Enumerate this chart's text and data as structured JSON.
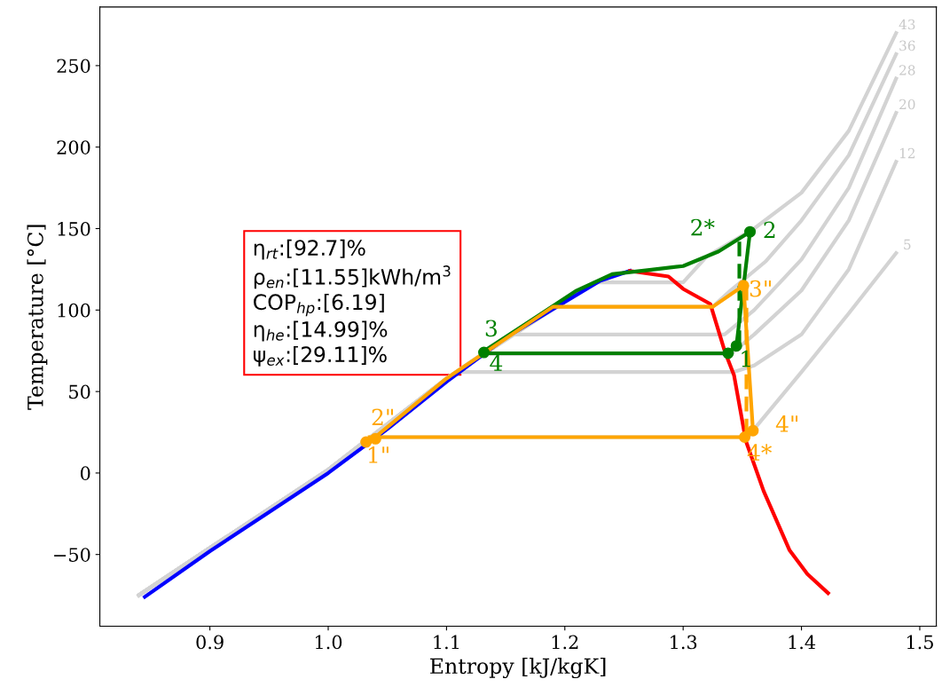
{
  "chart_data": {
    "type": "line",
    "xlabel": "Entropy [kJ/kgK]",
    "ylabel": "Temperature [°C]",
    "xlim": [
      0.807,
      1.514
    ],
    "ylim": [
      -94,
      286
    ],
    "xticks": [
      0.9,
      {
        "value": 1.0,
        "label": "1.0"
      },
      1.1,
      1.2,
      1.3,
      1.4,
      1.5
    ],
    "yticks": [
      {
        "value": -50,
        "label": "−50"
      },
      0,
      50,
      100,
      150,
      200,
      250
    ],
    "grid": false,
    "legend": false,
    "series": [
      {
        "color": "#d3d3d3",
        "x": [
          0.84,
          0.9,
          1.0,
          1.035,
          1.355,
          1.36,
          1.4,
          1.44,
          1.48
        ],
        "values": [
          -75,
          -46,
          2,
          22,
          22,
          27,
          62,
          98,
          135
        ]
      },
      {
        "color": "#d3d3d3",
        "x": [
          0.84,
          0.9,
          1.0,
          1.1,
          1.11,
          1.343,
          1.36,
          1.4,
          1.44,
          1.48
        ],
        "values": [
          -75,
          -46,
          2,
          58,
          62,
          62,
          66,
          85,
          125,
          191
        ]
      },
      {
        "color": "#d3d3d3",
        "x": [
          0.84,
          0.9,
          1.0,
          1.1,
          1.13,
          1.34,
          1.36,
          1.4,
          1.44,
          1.48
        ],
        "values": [
          -75,
          -46,
          2,
          58,
          73,
          73,
          85,
          112,
          155,
          221
        ]
      },
      {
        "color": "#d3d3d3",
        "x": [
          0.84,
          0.9,
          1.0,
          1.1,
          1.155,
          1.335,
          1.36,
          1.4,
          1.44,
          1.48
        ],
        "values": [
          -75,
          -46,
          2,
          58,
          85,
          85,
          100,
          131,
          175,
          242
        ]
      },
      {
        "color": "#d3d3d3",
        "x": [
          0.84,
          0.9,
          1.0,
          1.1,
          1.19,
          1.325,
          1.34,
          1.37,
          1.4,
          1.44,
          1.48
        ],
        "values": [
          -75,
          -46,
          2,
          58,
          102,
          102,
          112,
          130,
          155,
          195,
          257
        ]
      },
      {
        "color": "#d3d3d3",
        "x": [
          0.84,
          0.9,
          1.0,
          1.1,
          1.225,
          1.3,
          1.32,
          1.36,
          1.4,
          1.44,
          1.48
        ],
        "values": [
          -75,
          -46,
          2,
          58,
          117,
          117,
          133,
          150,
          172,
          210,
          270
        ]
      },
      {
        "color": "#0000ff",
        "x": [
          0.845,
          0.9,
          0.95,
          1.0,
          1.05,
          1.1,
          1.15,
          1.2,
          1.23,
          1.255
        ],
        "values": [
          -76,
          -48,
          -24,
          0,
          27,
          56,
          83,
          105,
          118,
          124
        ]
      },
      {
        "color": "#ff0000",
        "x": [
          1.255,
          1.2876,
          1.3,
          1.323,
          1.3355,
          1.343,
          1.353,
          1.368,
          1.39,
          1.405,
          1.4225
        ],
        "values": [
          124,
          120.6,
          113,
          103.7,
          74,
          60,
          19.7,
          -11,
          -47.5,
          -62,
          -73.7
        ]
      },
      {
        "color": "#008000",
        "x": [
          1.13,
          1.17,
          1.21,
          1.24,
          1.27,
          1.3,
          1.33,
          1.3565,
          1.345,
          1.338,
          1.13
        ],
        "values": [
          74,
          93,
          112,
          122,
          124.5,
          127,
          136,
          148,
          78,
          73.5,
          73.5
        ]
      },
      {
        "color": "#008000",
        "line_style": "dashed",
        "x": [
          1.3475,
          1.3475
        ],
        "values": [
          142,
          78
        ]
      },
      {
        "color": "#ffa500",
        "x": [
          1.038,
          1.1,
          1.19,
          1.325,
          1.351,
          1.359,
          1.352,
          1.035
        ],
        "values": [
          21,
          58,
          102,
          102,
          115,
          26,
          22,
          22
        ]
      },
      {
        "color": "#ffa500",
        "line_style": "dashed",
        "x": [
          1.3535,
          1.3535
        ],
        "values": [
          115,
          22
        ]
      },
      {
        "type": "scatter",
        "marker": "circle",
        "color": "#008000",
        "x": [
          1.345,
          1.3565,
          1.338,
          1.1316
        ],
        "values": [
          78,
          148,
          73.5,
          74
        ]
      },
      {
        "type": "scatter",
        "marker": "circle",
        "color": "#ffa500",
        "x": [
          1.032,
          1.04,
          1.351,
          1.352,
          1.359
        ],
        "values": [
          19,
          21,
          115,
          22,
          26
        ]
      }
    ],
    "annotations": [
      {
        "text": "43",
        "x": 1.48,
        "y": 270
      },
      {
        "text": "36",
        "x": 1.48,
        "y": 257
      },
      {
        "text": "28",
        "x": 1.48,
        "y": 242
      },
      {
        "text": "20",
        "x": 1.48,
        "y": 221
      },
      {
        "text": "12",
        "x": 1.48,
        "y": 191
      },
      {
        "text": "5",
        "x": 1.48,
        "y": 135
      },
      {
        "text": "2*",
        "x": 1.3475,
        "y": 142
      },
      {
        "text": "2",
        "x": 1.3565,
        "y": 148
      },
      {
        "text": "3",
        "x": 1.1316,
        "y": 74
      },
      {
        "text": "4",
        "x": 1.1316,
        "y": 74
      },
      {
        "text": "1",
        "x": 1.345,
        "y": 78
      },
      {
        "text": "2\"",
        "x": 1.04,
        "y": 21
      },
      {
        "text": "1\"",
        "x": 1.032,
        "y": 19
      },
      {
        "text": "3\"",
        "x": 1.351,
        "y": 115
      },
      {
        "text": "4\"",
        "x": 1.359,
        "y": 26
      },
      {
        "text": "4*",
        "x": 1.352,
        "y": 22
      },
      "η$_{rt}$:[92.7]%",
      "ρ$_{en}$:[11.55]kWh/m$^{3}$",
      "COP$_{hp}$:[6.19]",
      "η$_{he}$:[14.99]%",
      "ψ$_{ex}$:[29.11]%"
    ]
  }
}
